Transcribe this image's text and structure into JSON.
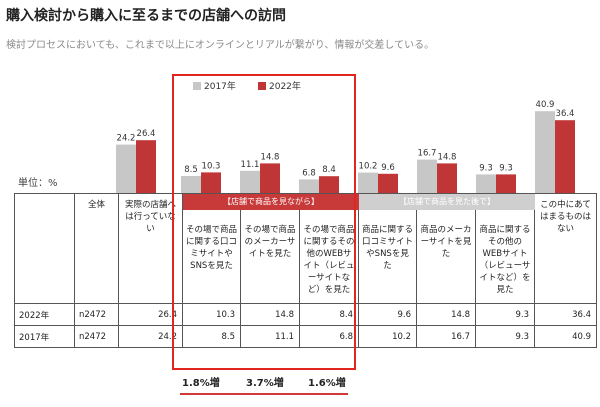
{
  "title": "購入検討から購入に至るまでの店舗への訪問",
  "subtitle": "検討プロセスにおいても、これまで以上にオンラインとリアルが繋がり、情報が交差している。",
  "unit_label": "単位：%",
  "colors": {
    "y2017": "#c7c7c7",
    "y2022": "#c03535",
    "highlight": "#e0261e",
    "band_red": "#c83a3a",
    "band_gray": "#cfcfcf"
  },
  "chart_data": {
    "type": "bar",
    "categories": [
      "全体 実際の店舗へは行っていない",
      "その場で商品に関する口コミサイトやSNSを見た",
      "その場で商品のメーカーサイトを見た",
      "その場で商品に関するその他のWEBサイト（レビューサイトなど）を見た",
      "商品に関する口コミサイトやSNSを見た",
      "商品のメーカーサイトを見た",
      "商品に関するその他のWEBサイト（レビューサイトなど）を見た",
      "この中にあてはまるものはない"
    ],
    "series": [
      {
        "name": "2017年",
        "values": [
          24.2,
          8.5,
          11.1,
          6.8,
          10.2,
          16.7,
          9.3,
          40.9
        ]
      },
      {
        "name": "2022年",
        "values": [
          26.4,
          10.3,
          14.8,
          8.4,
          9.6,
          14.8,
          9.3,
          36.4
        ]
      }
    ],
    "value_labels": {
      "2017年": [
        "24.2",
        "8.5",
        "11.1",
        "6.8",
        "10.2",
        "16.7",
        "9.3",
        "40.9"
      ],
      "2022年": [
        "26.4",
        "10.3",
        "14.8",
        "8.4",
        "9.6",
        "14.8",
        "9.3",
        "36.4"
      ]
    },
    "legend": [
      "2017年",
      "2022年"
    ],
    "ylim": [
      0,
      48
    ]
  },
  "table": {
    "col0_header": "全体",
    "headers": [
      "実際の店舗へは行っていない",
      "その場で商品に関する口コミサイトやSNSを見た",
      "その場で商品のメーカーサイトを見た",
      "その場で商品に関するその他のWEBサイト（レビューサイトなど）を見た",
      "商品に関する口コミサイトやSNSを見た",
      "商品のメーカーサイトを見た",
      "商品に関するその他のWEBサイト（レビューサイトなど）を見た",
      "この中にあてはまるものはない"
    ],
    "band_in_store": "【店舗で商品を見ながら】",
    "band_after": "【店舗で商品を見た後で】",
    "rows": [
      {
        "label": "2022年",
        "n": "n2472",
        "values": [
          "26.4",
          "10.3",
          "14.8",
          "8.4",
          "9.6",
          "14.8",
          "9.3",
          "36.4"
        ]
      },
      {
        "label": "2017年",
        "n": "n2472",
        "values": [
          "24.2",
          "8.5",
          "11.1",
          "6.8",
          "10.2",
          "16.7",
          "9.3",
          "40.9"
        ]
      }
    ]
  },
  "increase_notes": [
    "1.8%増",
    "3.7%増",
    "1.6%増"
  ]
}
